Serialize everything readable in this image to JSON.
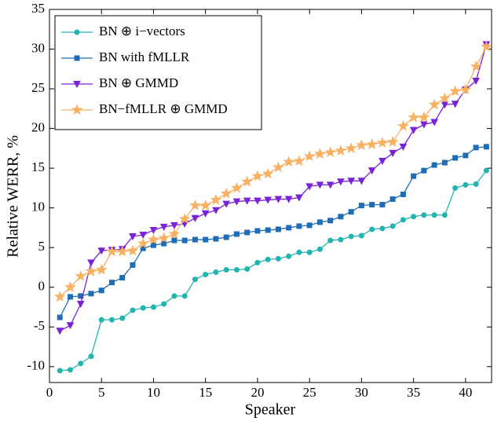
{
  "chart_data": {
    "type": "line",
    "x_label": "Speaker",
    "y_label": "Relative WERR, %",
    "x": [
      1,
      2,
      3,
      4,
      5,
      6,
      7,
      8,
      9,
      10,
      11,
      12,
      13,
      14,
      15,
      16,
      17,
      18,
      19,
      20,
      21,
      22,
      23,
      24,
      25,
      26,
      27,
      28,
      29,
      30,
      31,
      32,
      33,
      34,
      35,
      36,
      37,
      38,
      39,
      40,
      41,
      42
    ],
    "series": [
      {
        "name": "BN ⊕ i−vectors",
        "color": "#22b5b0",
        "marker": "circle",
        "values": [
          -10.5,
          -10.4,
          -9.6,
          -8.7,
          -4.1,
          -4.1,
          -3.9,
          -2.9,
          -2.6,
          -2.5,
          -2.1,
          -1.1,
          -1.1,
          1.0,
          1.6,
          1.9,
          2.2,
          2.2,
          2.3,
          3.1,
          3.5,
          3.6,
          3.9,
          4.4,
          4.4,
          4.8,
          5.9,
          6.0,
          6.4,
          6.5,
          7.3,
          7.4,
          7.7,
          8.5,
          8.9,
          9.1,
          9.1,
          9.1,
          12.5,
          12.9,
          13.0,
          14.7
        ]
      },
      {
        "name": "BN with fMLLR",
        "color": "#1f6db5",
        "marker": "square",
        "values": [
          -3.8,
          -1.2,
          -1.1,
          -0.8,
          -0.4,
          0.6,
          1.2,
          2.8,
          4.9,
          5.3,
          5.5,
          5.9,
          5.9,
          6.0,
          6.0,
          6.1,
          6.3,
          6.7,
          6.9,
          7.1,
          7.2,
          7.3,
          7.5,
          7.7,
          7.8,
          8.2,
          8.4,
          8.9,
          9.5,
          10.3,
          10.4,
          10.4,
          11.1,
          11.7,
          14.0,
          14.7,
          15.4,
          15.7,
          16.3,
          16.6,
          17.6,
          17.7
        ]
      },
      {
        "name": "BN ⊕ GMMD",
        "color": "#7a22d6",
        "marker": "triangle-down",
        "values": [
          -5.5,
          -4.8,
          -2.1,
          3.1,
          4.6,
          4.7,
          4.8,
          6.4,
          6.6,
          7.2,
          7.6,
          7.8,
          8.0,
          8.7,
          9.3,
          9.7,
          10.5,
          10.8,
          10.9,
          10.9,
          11.0,
          11.1,
          11.1,
          11.3,
          12.7,
          12.9,
          12.9,
          13.3,
          13.4,
          13.4,
          14.7,
          15.9,
          16.9,
          17.7,
          19.8,
          20.5,
          20.8,
          23.0,
          23.1,
          24.9,
          26.0,
          30.6
        ]
      },
      {
        "name": "BN−fMLLR ⊕ GMMD",
        "color": "#f8b062",
        "marker": "star",
        "values": [
          -1.2,
          0.0,
          1.4,
          2.0,
          2.2,
          4.5,
          4.5,
          4.6,
          5.5,
          6.0,
          6.2,
          6.7,
          8.6,
          10.3,
          10.3,
          11.0,
          11.8,
          12.5,
          13.3,
          14.0,
          14.3,
          15.1,
          15.8,
          15.9,
          16.5,
          16.8,
          17.0,
          17.2,
          17.5,
          17.9,
          18.0,
          18.2,
          18.3,
          20.3,
          21.4,
          21.4,
          23.0,
          23.8,
          24.7,
          24.9,
          27.8,
          30.3
        ]
      }
    ],
    "xlim": [
      0,
      42.5
    ],
    "xticks": [
      0,
      5,
      10,
      15,
      20,
      25,
      30,
      35,
      40
    ],
    "ylim": [
      -12,
      35
    ],
    "yticks": [
      -10,
      -5,
      0,
      5,
      10,
      15,
      20,
      25,
      30,
      35
    ],
    "legend": "upper left",
    "grid": false
  }
}
